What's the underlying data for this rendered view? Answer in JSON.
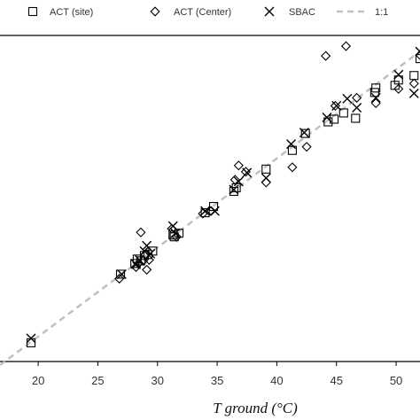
{
  "chart_data": {
    "type": "scatter",
    "title": "",
    "xlabel": "T ground (°C)",
    "ylabel": "",
    "xlim": [
      16.8,
      52.0
    ],
    "ylim": [
      17.2,
      53.8
    ],
    "xticks": [
      "20",
      "25",
      "30",
      "35",
      "40",
      "45",
      "50"
    ],
    "legend_placement": "top",
    "grid": false,
    "reference_line": {
      "name": "1:1",
      "slope": 1,
      "intercept": 0,
      "color": "#c0c0c0"
    },
    "series": [
      {
        "name": "ACT (site)",
        "marker": "square",
        "color": "#000000",
        "x": [
          19.4,
          26.9,
          28.1,
          28.3,
          28.6,
          28.9,
          29.2,
          29.6,
          31.3,
          31.4,
          31.8,
          34.0,
          34.7,
          36.4,
          36.6,
          39.1,
          41.3,
          42.4,
          44.3,
          44.8,
          45.6,
          46.6,
          48.2,
          48.3,
          49.9,
          50.2,
          51.5,
          52.0
        ],
        "y": [
          19.3,
          27.0,
          28.2,
          28.7,
          28.5,
          29.1,
          29.2,
          29.6,
          31.4,
          31.2,
          31.6,
          33.9,
          34.6,
          36.3,
          36.7,
          38.8,
          40.9,
          42.8,
          44.1,
          44.4,
          45.1,
          44.5,
          47.4,
          47.9,
          48.2,
          48.8,
          49.3,
          51.2
        ]
      },
      {
        "name": "ACT (Center)",
        "marker": "diamond",
        "color": "#000000",
        "x": [
          26.8,
          28.2,
          28.4,
          28.6,
          28.8,
          29.0,
          29.1,
          29.3,
          31.2,
          31.6,
          33.8,
          34.5,
          36.5,
          36.8,
          37.4,
          39.1,
          41.3,
          42.5,
          44.1,
          44.9,
          45.8,
          46.7,
          48.3,
          50.2,
          51.5,
          52.0
        ],
        "y": [
          26.5,
          27.8,
          28.2,
          31.7,
          28.5,
          29.2,
          27.5,
          28.6,
          32.1,
          31.2,
          33.8,
          34.1,
          37.6,
          39.2,
          38.5,
          37.3,
          39.0,
          41.3,
          51.5,
          45.9,
          52.6,
          46.8,
          46.2,
          47.8,
          48.4,
          51.6
        ]
      },
      {
        "name": "SBAC",
        "marker": "x",
        "color": "#000000",
        "x": [
          19.4,
          27.0,
          28.2,
          28.5,
          28.9,
          29.1,
          29.4,
          31.3,
          31.5,
          34.0,
          34.8,
          36.4,
          36.8,
          37.5,
          39.1,
          41.2,
          42.3,
          44.2,
          45.0,
          45.9,
          46.7,
          48.3,
          50.2,
          51.5,
          52.0
        ],
        "y": [
          19.8,
          27.0,
          28.1,
          28.6,
          29.6,
          30.2,
          29.3,
          32.4,
          31.6,
          34.1,
          34.1,
          36.5,
          37.4,
          38.4,
          37.8,
          41.6,
          42.9,
          44.6,
          45.9,
          46.7,
          45.7,
          46.8,
          49.4,
          47.3,
          52.0
        ]
      }
    ]
  }
}
